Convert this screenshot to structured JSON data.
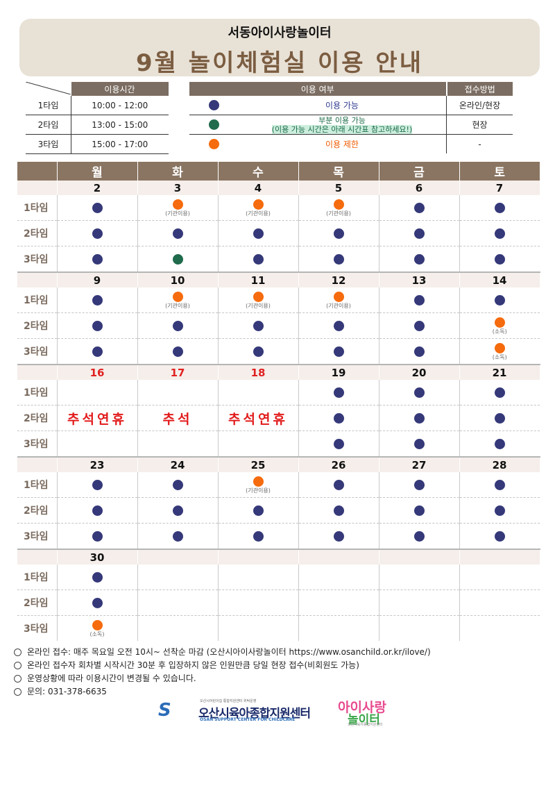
{
  "header": {
    "subtitle": "서동아이사랑놀이터",
    "title": "9월 놀이체험실 이용 안내"
  },
  "time_table": {
    "header": "이용시간",
    "rows": [
      {
        "label": "1타임",
        "time": "10:00 - 12:00"
      },
      {
        "label": "2타임",
        "time": "13:00 - 15:00"
      },
      {
        "label": "3타임",
        "time": "15:00 - 17:00"
      }
    ]
  },
  "status_table": {
    "header_status": "이용 여부",
    "header_method": "접수방법",
    "rows": [
      {
        "dot": "blue",
        "text": "이용 가능",
        "method": "온라인/현장"
      },
      {
        "dot": "green",
        "text": "부분 이용 가능",
        "subtext": "(이용 가능 시간은 아래 시간표 참고하세요!)",
        "method": "현장"
      },
      {
        "dot": "orange",
        "text": "이용 제한",
        "method": "-"
      }
    ]
  },
  "calendar": {
    "days": [
      "월",
      "화",
      "수",
      "목",
      "금",
      "토"
    ],
    "slot_labels": [
      "1타임",
      "2타임",
      "3타임"
    ],
    "weeks": [
      {
        "dates": [
          "2",
          "3",
          "4",
          "5",
          "6",
          "7"
        ],
        "slots": [
          [
            {
              "d": "blue"
            },
            {
              "d": "orange",
              "n": "(기관이용)"
            },
            {
              "d": "orange",
              "n": "(기관이용)"
            },
            {
              "d": "orange",
              "n": "(기관이용)"
            },
            {
              "d": "blue"
            },
            {
              "d": "blue"
            }
          ],
          [
            {
              "d": "blue"
            },
            {
              "d": "blue"
            },
            {
              "d": "blue"
            },
            {
              "d": "blue"
            },
            {
              "d": "blue"
            },
            {
              "d": "blue"
            }
          ],
          [
            {
              "d": "blue"
            },
            {
              "d": "green"
            },
            {
              "d": "blue"
            },
            {
              "d": "blue"
            },
            {
              "d": "blue"
            },
            {
              "d": "blue"
            }
          ]
        ]
      },
      {
        "dates": [
          "9",
          "10",
          "11",
          "12",
          "13",
          "14"
        ],
        "slots": [
          [
            {
              "d": "blue"
            },
            {
              "d": "orange",
              "n": "(기관이용)"
            },
            {
              "d": "orange",
              "n": "(기관이용)"
            },
            {
              "d": "orange",
              "n": "(기관이용)"
            },
            {
              "d": "blue"
            },
            {
              "d": "blue"
            }
          ],
          [
            {
              "d": "blue"
            },
            {
              "d": "blue"
            },
            {
              "d": "blue"
            },
            {
              "d": "blue"
            },
            {
              "d": "blue"
            },
            {
              "d": "orange",
              "n": "(소독)"
            }
          ],
          [
            {
              "d": "blue"
            },
            {
              "d": "blue"
            },
            {
              "d": "blue"
            },
            {
              "d": "blue"
            },
            {
              "d": "blue"
            },
            {
              "d": "orange",
              "n": "(소독)"
            }
          ]
        ]
      },
      {
        "dates": [
          "16",
          "17",
          "18",
          "19",
          "20",
          "21"
        ],
        "holiday_dates": [
          0,
          1,
          2
        ],
        "holiday_labels": [
          "추석연휴",
          "추석",
          "추석연휴"
        ],
        "slots": [
          [
            {},
            {},
            {},
            {
              "d": "blue"
            },
            {
              "d": "blue"
            },
            {
              "d": "blue"
            }
          ],
          [
            {},
            {},
            {},
            {
              "d": "blue"
            },
            {
              "d": "blue"
            },
            {
              "d": "blue"
            }
          ],
          [
            {},
            {},
            {},
            {
              "d": "blue"
            },
            {
              "d": "blue"
            },
            {
              "d": "blue"
            }
          ]
        ]
      },
      {
        "dates": [
          "23",
          "24",
          "25",
          "26",
          "27",
          "28"
        ],
        "slots": [
          [
            {
              "d": "blue"
            },
            {
              "d": "blue"
            },
            {
              "d": "orange",
              "n": "(기관이용)"
            },
            {
              "d": "blue"
            },
            {
              "d": "blue"
            },
            {
              "d": "blue"
            }
          ],
          [
            {
              "d": "blue"
            },
            {
              "d": "blue"
            },
            {
              "d": "blue"
            },
            {
              "d": "blue"
            },
            {
              "d": "blue"
            },
            {
              "d": "blue"
            }
          ],
          [
            {
              "d": "blue"
            },
            {
              "d": "blue"
            },
            {
              "d": "blue"
            },
            {
              "d": "blue"
            },
            {
              "d": "blue"
            },
            {
              "d": "blue"
            }
          ]
        ]
      },
      {
        "dates": [
          "30",
          "",
          "",
          "",
          "",
          ""
        ],
        "slots": [
          [
            {
              "d": "blue"
            },
            {},
            {},
            {},
            {},
            {}
          ],
          [
            {
              "d": "blue"
            },
            {},
            {},
            {},
            {},
            {}
          ],
          [
            {
              "d": "orange",
              "n": "(소독)"
            },
            {},
            {},
            {},
            {},
            {}
          ]
        ]
      }
    ]
  },
  "info": [
    "온라인 접수: 매주 목요일 오전 10시~ 선착순 마감 (오산시아이사랑놀이터 https://www.osanchild.or.kr/ilove/)",
    "온라인 접수자 회차별 시작시간 30분 후 입장하지 않은 인원만큼 당일 현장 접수(비회원도 가능)",
    "운영상황에 따라 이용시간이 변경될 수 있습니다.",
    "문의: 031-378-6635"
  ],
  "logos": {
    "center_tiny": "오산시어린이집 통합지원센터 위탁운영",
    "center_name": "오산시육아종합지원센터",
    "center_eng": "OSAN SUPPORT CENTER FOR CHILDCARE",
    "playground_line1": "아이사랑",
    "playground_line2": "놀이터",
    "playground_small": "오산시육아종합지원센터"
  },
  "colors": {
    "available": "#353979",
    "partial": "#1f6b4c",
    "restricted": "#f56b0d",
    "holiday": "#e21b1b",
    "header_bg": "#e8e1d6",
    "title": "#7b5d41"
  }
}
